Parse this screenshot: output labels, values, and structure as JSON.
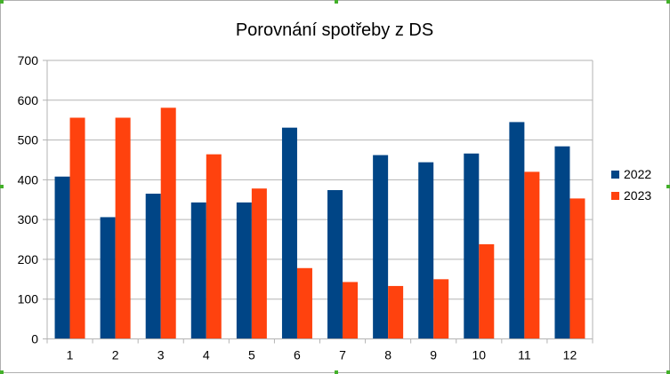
{
  "chart_data": {
    "type": "bar",
    "title": "Porovnání spotřeby z DS",
    "xlabel": "",
    "ylabel": "",
    "ylim": [
      0,
      700
    ],
    "yticks": [
      "0",
      "100",
      "200",
      "300",
      "400",
      "500",
      "600",
      "700"
    ],
    "grid": true,
    "legend_position": "right",
    "categories": [
      "1",
      "2",
      "3",
      "4",
      "5",
      "6",
      "7",
      "8",
      "9",
      "10",
      "11",
      "12"
    ],
    "series": [
      {
        "name": "2022",
        "color": "#004586",
        "values": [
          408,
          306,
          365,
          343,
          343,
          531,
          374,
          462,
          444,
          466,
          545,
          484
        ]
      },
      {
        "name": "2023",
        "color": "#ff420e",
        "values": [
          556,
          556,
          581,
          464,
          378,
          178,
          143,
          133,
          150,
          238,
          420,
          353
        ]
      }
    ]
  }
}
